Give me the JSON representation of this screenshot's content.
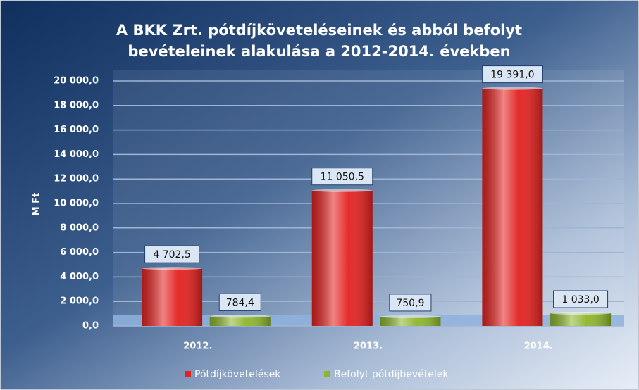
{
  "chart_data": {
    "type": "bar",
    "title": [
      "A BKK Zrt. pótdíjköveteléseinek és abból befolyt",
      "bevételeinek alakulása a 2012-2014. években"
    ],
    "y_label": "M Ft",
    "categories": [
      "2012.",
      "2013.",
      "2014."
    ],
    "series": [
      {
        "name": "Pótdíjkövetelések",
        "color": "#e3211f",
        "values": [
          4702.5,
          11050.5,
          19391.0
        ],
        "value_labels": [
          "4 702,5",
          "11 050,5",
          "19 391,0"
        ]
      },
      {
        "name": "Befolyt pótdíjbevételek",
        "color": "#8db52b",
        "values": [
          784.4,
          750.9,
          1033.0
        ],
        "value_labels": [
          "784,4",
          "750,9",
          "1 033,0"
        ]
      }
    ],
    "ylim": [
      0,
      20000
    ],
    "yticks": [
      {
        "value": 0,
        "label": "0,0"
      },
      {
        "value": 2000,
        "label": "2 000,0"
      },
      {
        "value": 4000,
        "label": "4 000,0"
      },
      {
        "value": 6000,
        "label": "6 000,0"
      },
      {
        "value": 8000,
        "label": "8 000,0"
      },
      {
        "value": 10000,
        "label": "10 000,0"
      },
      {
        "value": 12000,
        "label": "12 000,0"
      },
      {
        "value": 14000,
        "label": "14 000,0"
      },
      {
        "value": 16000,
        "label": "16 000,0"
      },
      {
        "value": 18000,
        "label": "18 000,0"
      },
      {
        "value": 20000,
        "label": "20 000,0"
      }
    ],
    "grid": true,
    "legend": "bottom"
  }
}
